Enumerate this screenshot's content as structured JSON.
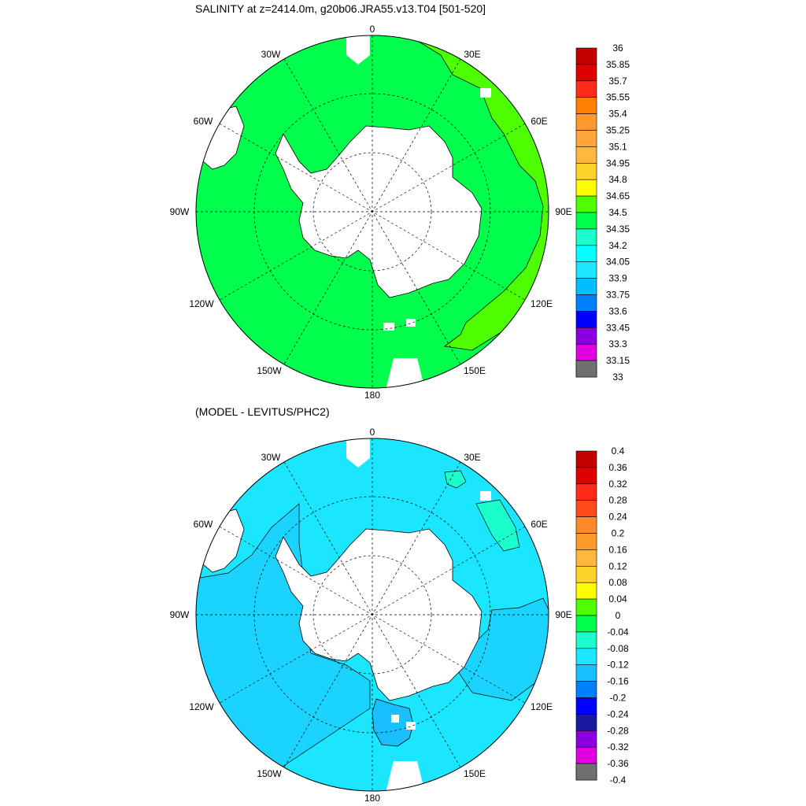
{
  "panels": [
    {
      "id": "top",
      "title": "SALINITY at z=2414.0m, g20b06.JRA55.v13.T04 [501-520]",
      "background_color": "#00ff4d",
      "legend_labels": [
        "36",
        "35.85",
        "35.7",
        "35.55",
        "35.4",
        "35.25",
        "35.1",
        "34.95",
        "34.8",
        "34.65",
        "34.5",
        "34.35",
        "34.2",
        "34.05",
        "33.9",
        "33.75",
        "33.6",
        "33.45",
        "33.3",
        "33.15",
        "33"
      ],
      "legend_colors": [
        "#c40000",
        "#e00000",
        "#ff2a1a",
        "#ff7f00",
        "#ff9a2a",
        "#ffa53a",
        "#ffb83a",
        "#ffd42a",
        "#ffff00",
        "#4dff00",
        "#00ff4d",
        "#1affcc",
        "#00ffff",
        "#1ae6ff",
        "#00bfff",
        "#0080ff",
        "#0000ff",
        "#8a00e0",
        "#e000e0",
        "#d0d0d0",
        "#707070"
      ]
    },
    {
      "id": "bottom",
      "title": "(MODEL - LEVITUS/PHC2)",
      "background_color": "#1ae6ff",
      "legend_labels": [
        "0.4",
        "0.36",
        "0.32",
        "0.28",
        "0.24",
        "0.2",
        "0.16",
        "0.12",
        "0.08",
        "0.04",
        "0",
        "-0.04",
        "-0.08",
        "-0.12",
        "-0.16",
        "-0.2",
        "-0.24",
        "-0.28",
        "-0.32",
        "-0.36",
        "-0.4"
      ],
      "legend_colors": [
        "#c40000",
        "#e00000",
        "#ff2a1a",
        "#ff4a1a",
        "#ff8a2a",
        "#ff9a2a",
        "#ffb83a",
        "#ffd42a",
        "#ffff00",
        "#4dff00",
        "#00ff4d",
        "#1affcc",
        "#1ae6ff",
        "#1abfff",
        "#0080ff",
        "#0000ff",
        "#1a1aa0",
        "#8a00e0",
        "#e000e0",
        "#d0d0d0",
        "#707070"
      ]
    }
  ],
  "longitude_labels": [
    "0",
    "30E",
    "60E",
    "90E",
    "120E",
    "150E",
    "180",
    "150W",
    "120W",
    "90W",
    "60W",
    "30W"
  ],
  "colors": {
    "land": "#ffffff",
    "coast": "#000000",
    "grid": "#000000",
    "top_warm_region": "#4dff00",
    "bottom_dark_region": "#1abfff",
    "bottom_teal_region": "#1affcc"
  }
}
